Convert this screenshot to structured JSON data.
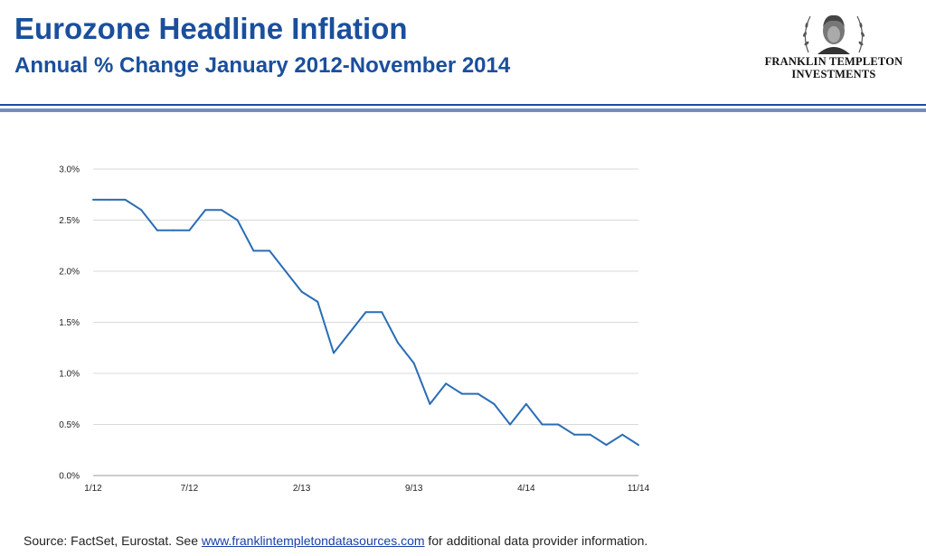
{
  "header": {
    "title": "Eurozone Headline Inflation",
    "subtitle": "Annual % Change January 2012-November 2014",
    "logo_line1": "FRANKLIN TEMPLETON",
    "logo_line2": "INVESTMENTS"
  },
  "colors": {
    "title": "#1a4f9c",
    "rule": "#1a4f9c",
    "line": "#2a6db5",
    "grid": "#d9d9d9"
  },
  "chart_data": {
    "type": "line",
    "x": [
      "1/12",
      "2/12",
      "3/12",
      "4/12",
      "5/12",
      "6/12",
      "7/12",
      "8/12",
      "9/12",
      "10/12",
      "11/12",
      "12/12",
      "1/13",
      "2/13",
      "3/13",
      "4/13",
      "5/13",
      "6/13",
      "7/13",
      "8/13",
      "9/13",
      "10/13",
      "11/13",
      "12/13",
      "1/14",
      "2/14",
      "3/14",
      "4/14",
      "5/14",
      "6/14",
      "7/14",
      "8/14",
      "9/14",
      "10/14",
      "11/14"
    ],
    "values": [
      2.7,
      2.7,
      2.7,
      2.6,
      2.4,
      2.4,
      2.4,
      2.6,
      2.6,
      2.5,
      2.2,
      2.2,
      2.0,
      1.8,
      1.7,
      1.2,
      1.4,
      1.6,
      1.6,
      1.3,
      1.1,
      0.7,
      0.9,
      0.8,
      0.8,
      0.7,
      0.5,
      0.7,
      0.5,
      0.5,
      0.4,
      0.4,
      0.3,
      0.4,
      0.3
    ],
    "xticks": [
      "1/12",
      "7/12",
      "2/13",
      "9/13",
      "4/14",
      "11/14"
    ],
    "xtick_index": [
      0,
      6,
      13,
      20,
      27,
      34
    ],
    "yticks": [
      "0.0%",
      "0.5%",
      "1.0%",
      "1.5%",
      "2.0%",
      "2.5%",
      "3.0%"
    ],
    "ylim": [
      0,
      3
    ],
    "grid": true,
    "legend": "none",
    "title": "",
    "xlabel": "",
    "ylabel": ""
  },
  "footer": {
    "source_prefix": "Source: FactSet, Eurostat. See ",
    "source_link": "www.franklintempletondatasources.com",
    "source_suffix": " for additional data provider information."
  }
}
